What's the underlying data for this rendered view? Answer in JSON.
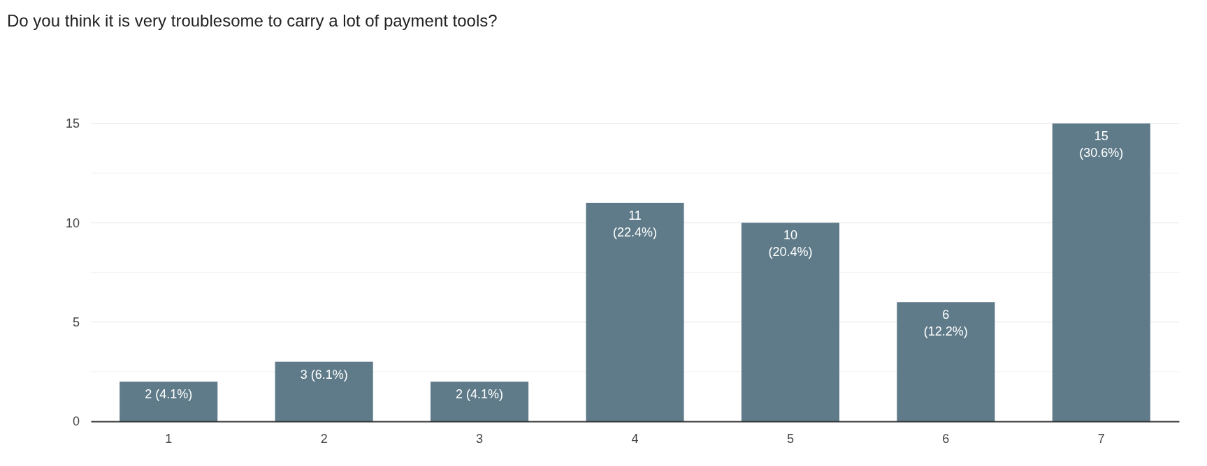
{
  "chart_data": {
    "type": "bar",
    "title": "Do you think it is very troublesome to carry a lot of payment tools?",
    "categories": [
      "1",
      "2",
      "3",
      "4",
      "5",
      "6",
      "7"
    ],
    "values": [
      2,
      3,
      2,
      11,
      10,
      6,
      15
    ],
    "value_labels": [
      "2 (4.1%)",
      "3 (6.1%)",
      "2 (4.1%)",
      "11 (22.4%)",
      "10 (20.4%)",
      "6 (12.2%)",
      "15 (30.6%)"
    ],
    "color": "#5f7b89",
    "ylim": [
      0,
      15
    ],
    "yticks": [
      0,
      {
        "value": 2.5,
        "label": null
      },
      5,
      {
        "value": 7.5,
        "label": null
      },
      10,
      {
        "value": 12.5,
        "label": null
      },
      15
    ],
    "grid": true
  }
}
